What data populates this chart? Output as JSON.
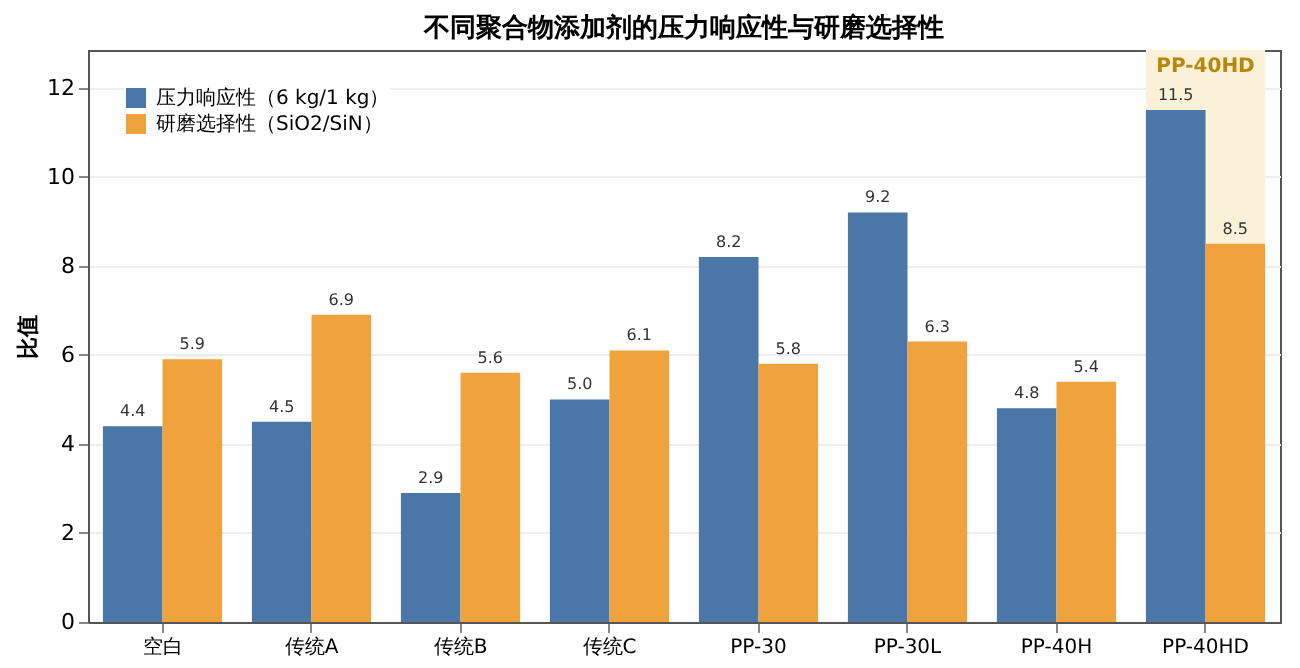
{
  "chart_data": {
    "type": "bar",
    "title": "不同聚合物添加剂的压力响应性与研磨选择性",
    "ylabel": "比值",
    "categories": [
      "空白",
      "传统A",
      "传统B",
      "传统C",
      "PP-30",
      "PP-30L",
      "PP-40H",
      "PP-40HD"
    ],
    "series": [
      {
        "name": "压力响应性（6 kg/1 kg）",
        "color": "#4a76a8",
        "values": [
          4.4,
          4.5,
          2.9,
          5.0,
          8.2,
          9.2,
          4.8,
          11.5
        ],
        "value_labels": [
          "4.4",
          "4.5",
          "2.9",
          "5.0",
          "8.2",
          "9.2",
          "4.8",
          "11.5"
        ]
      },
      {
        "name": "研磨选择性（SiO2/SiN）",
        "color": "#f0a23c",
        "values": [
          5.9,
          6.9,
          5.6,
          6.1,
          5.8,
          6.3,
          5.4,
          8.5
        ],
        "value_labels": [
          "5.9",
          "6.9",
          "5.6",
          "6.1",
          "5.8",
          "6.3",
          "5.4",
          "8.5"
        ]
      }
    ],
    "ylim": [
      0,
      12.85
    ],
    "yticks": [
      0,
      2,
      4,
      6,
      8,
      10,
      12
    ],
    "grid": "y",
    "legend": "top left",
    "bands": [
      {
        "axis": "x",
        "from": "PP-40HD",
        "to": "PP-40HD",
        "label": "PP-40HD",
        "color": "#fbf1d8"
      }
    ]
  }
}
